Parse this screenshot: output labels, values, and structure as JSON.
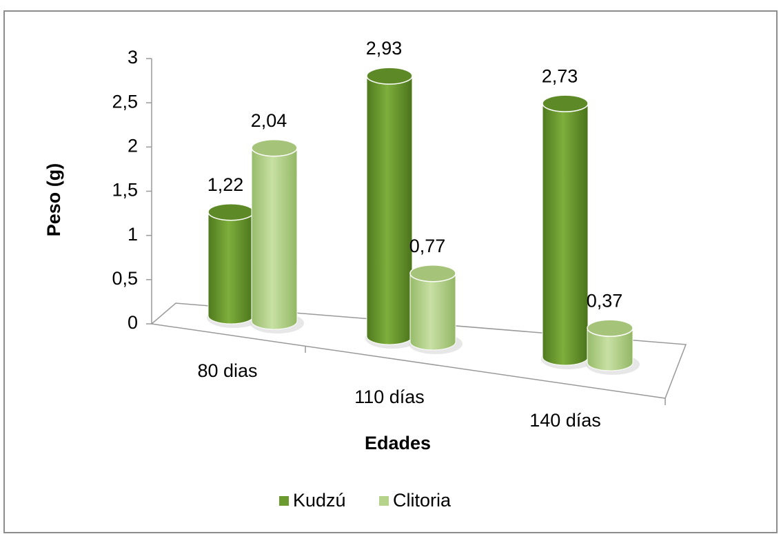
{
  "chart_data": {
    "type": "bar3d",
    "categories": [
      "80 dias",
      "110 días",
      "140 días"
    ],
    "series": [
      {
        "name": "Kudzú",
        "color": "#6b9a2e",
        "values": [
          1.22,
          2.93,
          2.73
        ],
        "value_labels": [
          "1,22",
          "2,93",
          "2,73"
        ]
      },
      {
        "name": "Clitoria",
        "color": "#b5d38a",
        "values": [
          2.04,
          0.77,
          0.37
        ],
        "value_labels": [
          "2,04",
          "0,77",
          "0,37"
        ]
      }
    ],
    "ylim": [
      0,
      3
    ],
    "yticks": [
      0,
      {
        "value": 0.5,
        "label": "0,5"
      },
      1,
      {
        "value": 1.5,
        "label": "1,5"
      },
      2,
      {
        "value": 2.5,
        "label": "2,5"
      },
      3
    ],
    "ylabel": "Peso (g)",
    "xlabel": "Edades",
    "legend": "bottom"
  }
}
